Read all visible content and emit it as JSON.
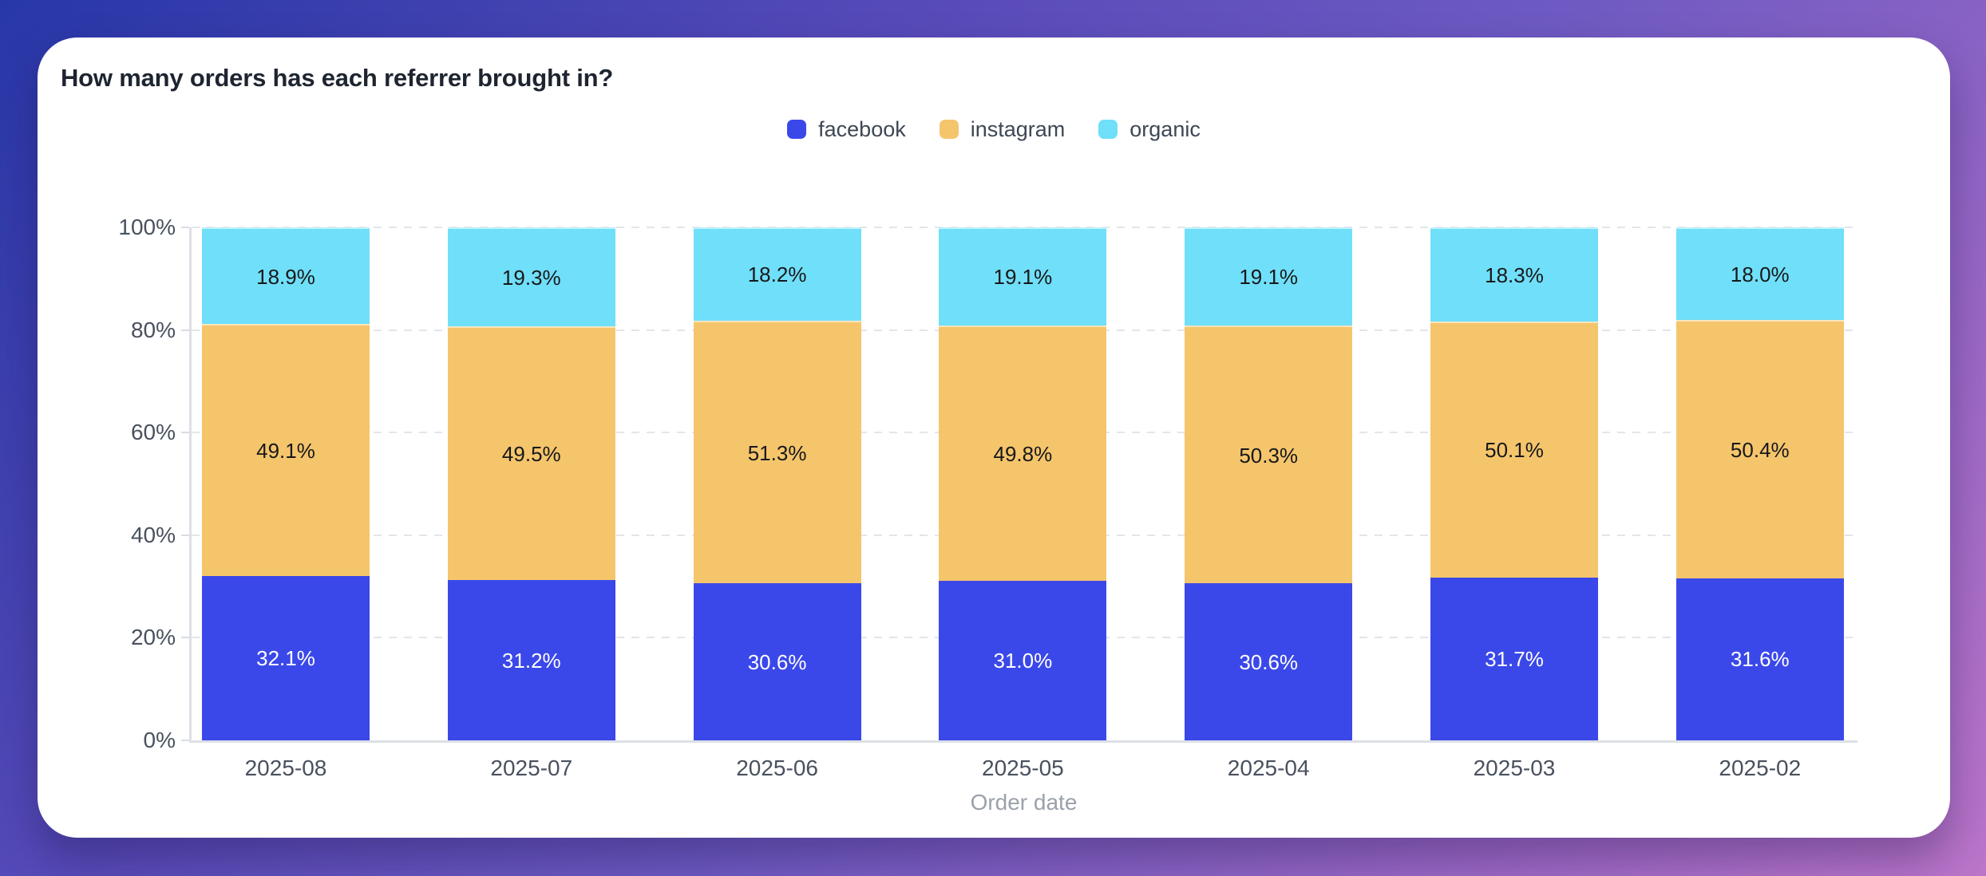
{
  "header": {
    "title": "How many orders has each referrer brought in?"
  },
  "chart_data": {
    "type": "bar",
    "variant": "stacked-100-percent",
    "title": "How many orders has each referrer brought in?",
    "categories": [
      "2025-08",
      "2025-07",
      "2025-06",
      "2025-05",
      "2025-04",
      "2025-03",
      "2025-02"
    ],
    "series": [
      {
        "name": "facebook",
        "color": "#3B48E9",
        "label_color": "#ffffff",
        "values": [
          32.1,
          31.2,
          30.6,
          31.0,
          30.6,
          31.7,
          31.6
        ]
      },
      {
        "name": "instagram",
        "color": "#F5C56C",
        "label_color": "#17181a",
        "values": [
          49.1,
          49.5,
          51.3,
          49.8,
          50.3,
          50.1,
          50.4
        ]
      },
      {
        "name": "organic",
        "color": "#70DFF9",
        "label_color": "#17181a",
        "values": [
          18.9,
          19.3,
          18.2,
          19.1,
          19.1,
          18.3,
          18.0
        ]
      }
    ],
    "xlabel": "Order date",
    "ylabel": "",
    "y_ticks": [
      0,
      20,
      40,
      60,
      80,
      100
    ],
    "ylim": [
      0,
      100
    ],
    "value_suffix": "%",
    "label_decimals": 1,
    "legend_position": "top-center",
    "grid": "dashed-horizontal"
  }
}
